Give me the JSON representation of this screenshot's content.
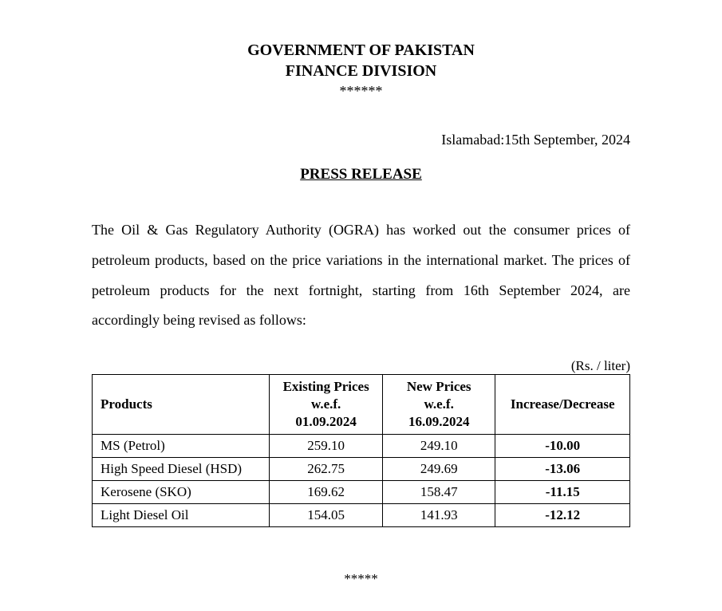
{
  "header": {
    "line1": "GOVERNMENT OF PAKISTAN",
    "line2": "FINANCE DIVISION",
    "stars": "******"
  },
  "dateline": "Islamabad:15th September, 2024",
  "release_title": "PRESS RELEASE",
  "body": "The Oil & Gas Regulatory Authority (OGRA) has worked out the consumer prices of petroleum products, based on the price variations in the international market. The prices of petroleum products for the next fortnight, starting from 16th September 2024, are accordingly being revised as follows:",
  "table": {
    "unit_label": "(Rs. / liter)",
    "columns": {
      "products": "Products",
      "existing_l1": "Existing Prices",
      "existing_l2": "w.e.f.",
      "existing_l3": "01.09.2024",
      "new_l1": "New Prices",
      "new_l2": "w.e.f.",
      "new_l3": "16.09.2024",
      "change": "Increase/Decrease"
    },
    "rows": [
      {
        "name": "MS (Petrol)",
        "existing": "259.10",
        "new": "249.10",
        "change": "-10.00"
      },
      {
        "name": "High Speed Diesel (HSD)",
        "existing": "262.75",
        "new": "249.69",
        "change": "-13.06"
      },
      {
        "name": "Kerosene (SKO)",
        "existing": "169.62",
        "new": "158.47",
        "change": "-11.15"
      },
      {
        "name": "Light Diesel Oil",
        "existing": "154.05",
        "new": "141.93",
        "change": "-12.12"
      }
    ]
  },
  "endstars": "*****"
}
